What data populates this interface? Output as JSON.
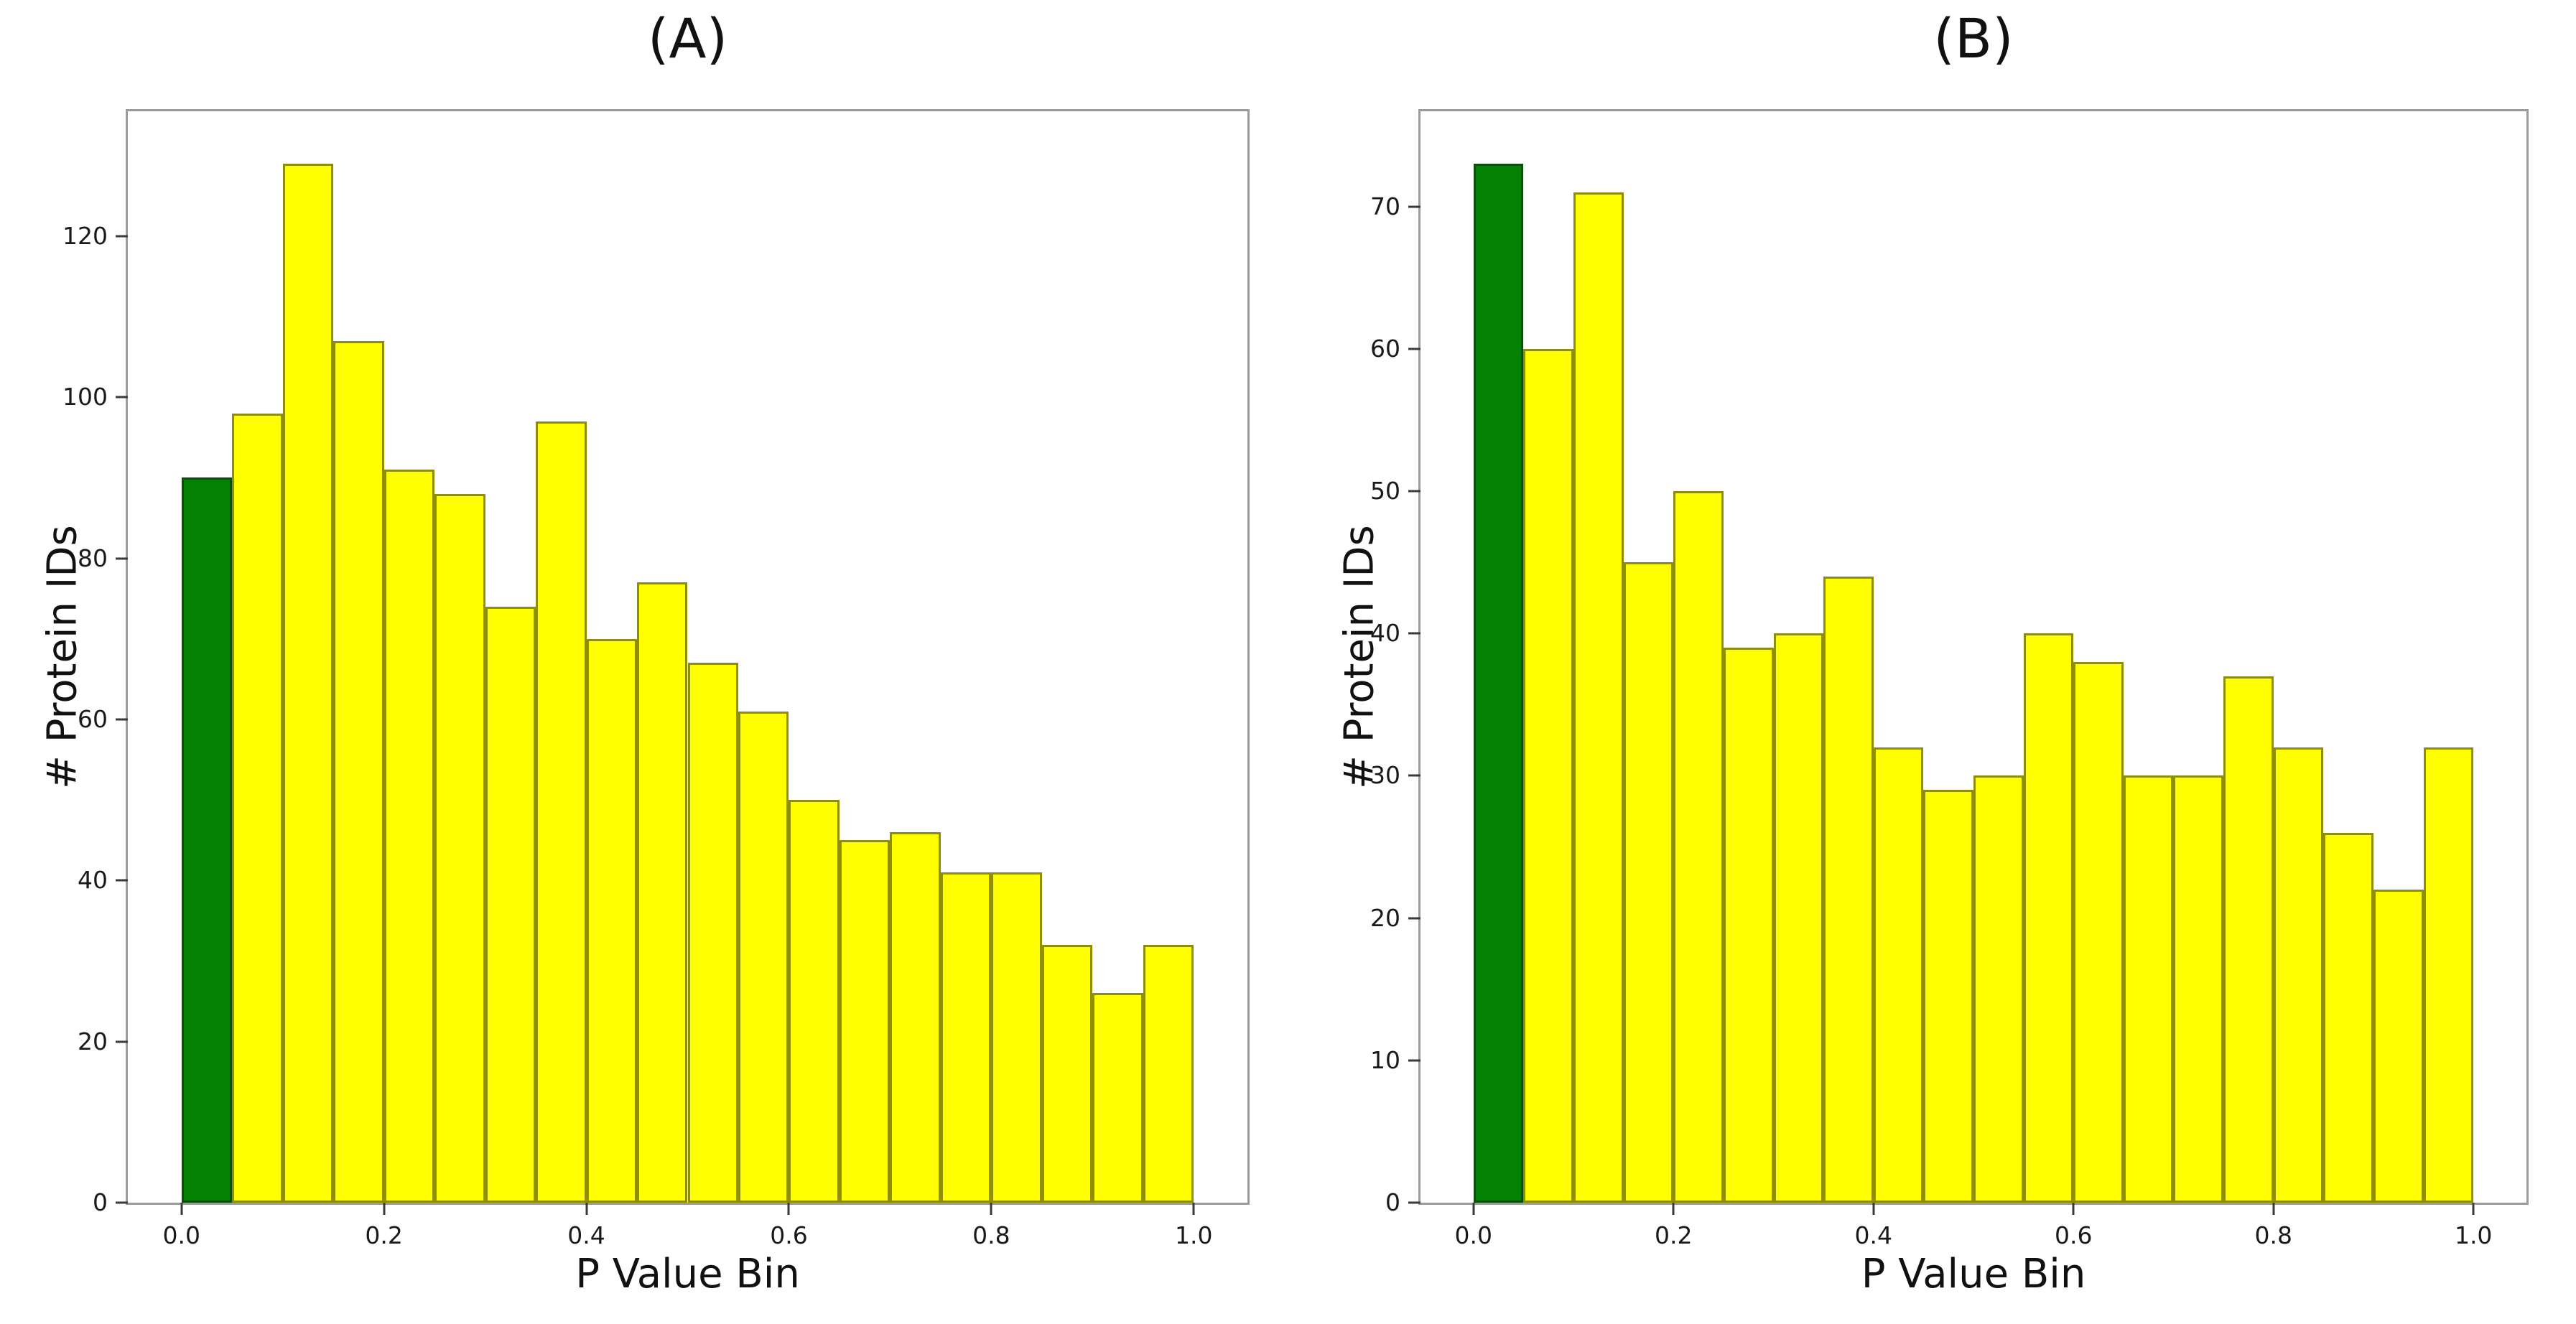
{
  "figure": {
    "background": "#ffffff",
    "panel_count": 2
  },
  "style": {
    "bar_fill_default": "#ffff00",
    "bar_edge_default": "#8f8f00",
    "bar_fill_highlight": "#038103",
    "bar_edge_highlight": "#0b4f0b",
    "frame_color": "#9b9b9b",
    "tick_color": "#3a3a3a",
    "text_color": "#111111"
  },
  "chart_data": [
    {
      "type": "bar",
      "title": "(A)",
      "xlabel": "P Value Bin",
      "ylabel": "# Protein IDs",
      "bins": {
        "start": 0.0,
        "width": 0.05,
        "count": 20
      },
      "values": [
        90,
        98,
        129,
        107,
        91,
        88,
        74,
        97,
        70,
        77,
        67,
        61,
        50,
        45,
        46,
        41,
        41,
        32,
        26,
        32
      ],
      "highlight_bins": [
        0
      ],
      "highlight_meaning": "green bar = first p-value bin (0.00-0.05)",
      "xticks": [
        {
          "pos": 0.0,
          "label": "0.0"
        },
        {
          "pos": 0.2,
          "label": "0.2"
        },
        {
          "pos": 0.4,
          "label": "0.4"
        },
        {
          "pos": 0.6,
          "label": "0.6"
        },
        {
          "pos": 0.8,
          "label": "0.8"
        },
        {
          "pos": 1.0,
          "label": "1.0"
        }
      ],
      "yticks": [
        0,
        20,
        40,
        60,
        80,
        100,
        120
      ],
      "xlim": [
        -0.053,
        1.053
      ],
      "ylim": [
        0,
        135.5
      ],
      "grid": false,
      "legend": null
    },
    {
      "type": "bar",
      "title": "(B)",
      "xlabel": "P Value Bin",
      "ylabel": "# Protein IDs",
      "bins": {
        "start": 0.0,
        "width": 0.05,
        "count": 20
      },
      "values": [
        73,
        60,
        71,
        45,
        50,
        39,
        40,
        44,
        32,
        29,
        30,
        40,
        38,
        30,
        30,
        37,
        32,
        26,
        22,
        32
      ],
      "highlight_bins": [
        0
      ],
      "highlight_meaning": "green bar = first p-value bin (0.00-0.05)",
      "xticks": [
        {
          "pos": 0.0,
          "label": "0.0"
        },
        {
          "pos": 0.2,
          "label": "0.2"
        },
        {
          "pos": 0.4,
          "label": "0.4"
        },
        {
          "pos": 0.6,
          "label": "0.6"
        },
        {
          "pos": 0.8,
          "label": "0.8"
        },
        {
          "pos": 1.0,
          "label": "1.0"
        }
      ],
      "yticks": [
        0,
        10,
        20,
        30,
        40,
        50,
        60,
        70
      ],
      "xlim": [
        -0.053,
        1.053
      ],
      "ylim": [
        0,
        76.7
      ],
      "grid": false,
      "legend": null
    }
  ]
}
